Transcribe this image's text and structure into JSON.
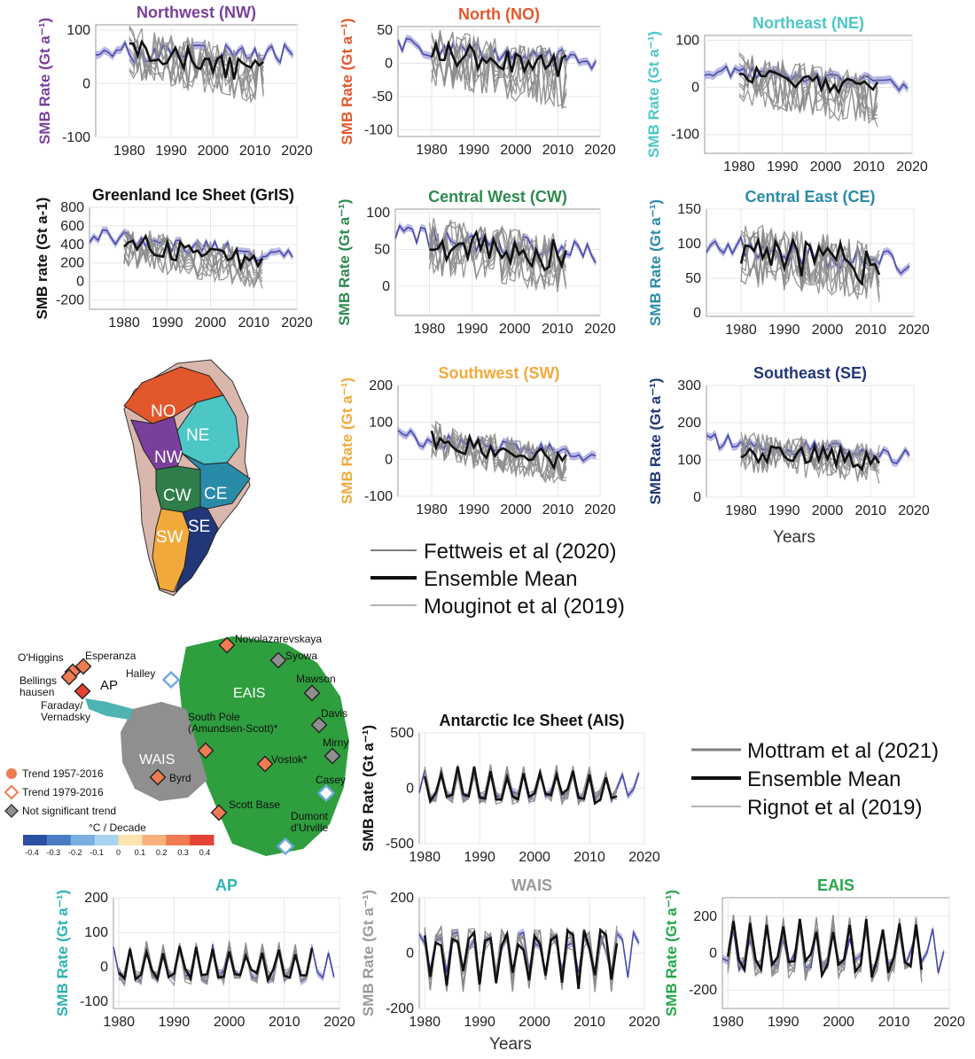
{
  "colors": {
    "NW": "#7a3f9d",
    "NO": "#e2572c",
    "NE": "#4dc6c6",
    "GrIS": "#111111",
    "CW": "#2e8a4e",
    "CE": "#2a8ba9",
    "SW": "#f2a93b",
    "SE": "#223777",
    "AIS": "#111111",
    "AP": "#2bb3b0",
    "WAIS": "#9a9a9a",
    "EAIS": "#26a64a",
    "ensemble": "#111111",
    "member": "#8c8c8c",
    "reference": "#4a4aa8",
    "reference_band": "#9d9ddd",
    "map_green": "#2e9e3e",
    "map_grey": "#8f8f8f"
  },
  "legend_greenland": [
    {
      "label": "Fettweis et al (2020)",
      "style": "member"
    },
    {
      "label": "Ensemble Mean",
      "style": "ensemble"
    },
    {
      "label": "Mouginot et al (2019)",
      "style": "thin"
    }
  ],
  "legend_antarctica": [
    {
      "label": "Mottram et al (2021)",
      "style": "member"
    },
    {
      "label": "Ensemble Mean",
      "style": "ensemble"
    },
    {
      "label": "Rignot et al (2019)",
      "style": "thin"
    }
  ],
  "x_axis_label_greenland": "Years",
  "x_axis_label_antarctica": "Years",
  "greenland_map": {
    "regions": [
      "NO",
      "NE",
      "NW",
      "CW",
      "CE",
      "SW",
      "SE"
    ]
  },
  "antarctica_map": {
    "region_labels": [
      "AP",
      "WAIS",
      "EAIS"
    ],
    "stations": [
      {
        "name": "O'Higgins",
        "trend": "1957"
      },
      {
        "name": "Esperanza",
        "trend": "1957"
      },
      {
        "name": "Bellings hausen",
        "trend": "1957"
      },
      {
        "name": "Faraday/ Vernadsky",
        "trend": "1957"
      },
      {
        "name": "Halley",
        "trend": "1979"
      },
      {
        "name": "Novolazarevskaya",
        "trend": "1957"
      },
      {
        "name": "Syowa",
        "trend": "ns"
      },
      {
        "name": "Mawson",
        "trend": "ns"
      },
      {
        "name": "Davis",
        "trend": "ns"
      },
      {
        "name": "Mirny",
        "trend": "ns"
      },
      {
        "name": "South Pole (Amundsen-Scott)*",
        "trend": "1957"
      },
      {
        "name": "Vostok*",
        "trend": "1957"
      },
      {
        "name": "Byrd",
        "trend": "1957"
      },
      {
        "name": "Casey",
        "trend": "1979"
      },
      {
        "name": "Scott Base",
        "trend": "1957"
      },
      {
        "name": "Dumont d'Urville",
        "trend": "1979"
      }
    ],
    "legend": [
      "Trend 1957-2016",
      "Trend 1979-2016",
      "Not significant trend"
    ],
    "colorbar_title": "°C / Decade",
    "colorbar_ticks": [
      "-0.4",
      "-0.3",
      "-0.2",
      "-0.1",
      "0",
      "0.1",
      "0.2",
      "0.3",
      "0.4"
    ],
    "colorbar_colors": [
      "#2b4fa2",
      "#4a7cc4",
      "#78aee0",
      "#a9d4ef",
      "#fde3b0",
      "#f7b07c",
      "#ef7b53",
      "#e34436"
    ]
  },
  "chart_data": [
    {
      "id": "NW",
      "type": "line",
      "title": "Northwest (NW)",
      "ylabel": "SMB Rate (Gt a⁻¹)",
      "xlim": [
        1972,
        2020
      ],
      "ylim": [
        -100,
        110
      ],
      "yticks": [
        -100,
        0,
        100
      ],
      "xticks": [
        1980,
        1990,
        2000,
        2010,
        2020
      ],
      "series": [
        {
          "role": "reference",
          "x": [
            1972,
            2019
          ],
          "values": [
            60,
            55
          ],
          "amp": 18
        },
        {
          "role": "ensemble",
          "x": [
            1980,
            2012
          ],
          "values": [
            65,
            20
          ],
          "amp": 22
        },
        {
          "role": "members",
          "x": [
            1980,
            2012
          ],
          "values": [
            60,
            10
          ],
          "amp": 50,
          "n": 8
        }
      ]
    },
    {
      "id": "NO",
      "type": "line",
      "title": "North (NO)",
      "ylabel": "SMB Rate (Gt a⁻¹)",
      "xlim": [
        1972,
        2020
      ],
      "ylim": [
        -110,
        55
      ],
      "yticks": [
        -100,
        -50,
        0,
        50
      ],
      "xticks": [
        1980,
        1990,
        2000,
        2010,
        2020
      ],
      "series": [
        {
          "role": "reference",
          "x": [
            1972,
            2019
          ],
          "values": [
            25,
            5
          ],
          "amp": 14
        },
        {
          "role": "ensemble",
          "x": [
            1980,
            2012
          ],
          "values": [
            15,
            -5
          ],
          "amp": 18
        },
        {
          "role": "members",
          "x": [
            1980,
            2012
          ],
          "values": [
            10,
            -25
          ],
          "amp": 45,
          "n": 8
        }
      ]
    },
    {
      "id": "NE",
      "type": "line",
      "title": "Northeast (NE)",
      "ylabel": "SMB Rate (Gt a⁻¹)",
      "xlim": [
        1972,
        2020
      ],
      "ylim": [
        -140,
        110
      ],
      "yticks": [
        -100,
        0,
        100
      ],
      "xticks": [
        1980,
        1990,
        2000,
        2010,
        2020
      ],
      "series": [
        {
          "role": "reference",
          "x": [
            1972,
            2019
          ],
          "values": [
            35,
            5
          ],
          "amp": 14
        },
        {
          "role": "ensemble",
          "x": [
            1980,
            2012
          ],
          "values": [
            30,
            -5
          ],
          "amp": 18
        },
        {
          "role": "members",
          "x": [
            1980,
            2012
          ],
          "values": [
            20,
            -30
          ],
          "amp": 55,
          "n": 8
        }
      ]
    },
    {
      "id": "GrIS",
      "type": "line",
      "title": "Greenland Ice Sheet (GrIS)",
      "ylabel": "SMB rate (Gt a-1)",
      "xlim": [
        1972,
        2020
      ],
      "ylim": [
        -300,
        800
      ],
      "yticks": [
        -200,
        0,
        200,
        400,
        600,
        800
      ],
      "xticks": [
        1980,
        1990,
        2000,
        2010,
        2020
      ],
      "series": [
        {
          "role": "reference",
          "x": [
            1972,
            2019
          ],
          "values": [
            500,
            250
          ],
          "amp": 90
        },
        {
          "role": "ensemble",
          "x": [
            1980,
            2012
          ],
          "values": [
            420,
            200
          ],
          "amp": 110
        },
        {
          "role": "members",
          "x": [
            1980,
            2012
          ],
          "values": [
            380,
            120
          ],
          "amp": 220,
          "n": 8
        }
      ]
    },
    {
      "id": "CW",
      "type": "line",
      "title": "Central West (CW)",
      "ylabel": "SMB Rate (Gt a⁻¹)",
      "xlim": [
        1972,
        2020
      ],
      "ylim": [
        -40,
        105
      ],
      "yticks": [
        0,
        50,
        100
      ],
      "xticks": [
        1980,
        1990,
        2000,
        2010,
        2020
      ],
      "series": [
        {
          "role": "reference",
          "x": [
            1972,
            2019
          ],
          "values": [
            70,
            45
          ],
          "amp": 14
        },
        {
          "role": "ensemble",
          "x": [
            1980,
            2012
          ],
          "values": [
            60,
            40
          ],
          "amp": 22
        },
        {
          "role": "members",
          "x": [
            1980,
            2012
          ],
          "values": [
            55,
            30
          ],
          "amp": 40,
          "n": 8
        }
      ]
    },
    {
      "id": "CE",
      "type": "line",
      "title": "Central East (CE)",
      "ylabel": "SMB Rate (Gt a⁻¹)",
      "xlim": [
        1972,
        2020
      ],
      "ylim": [
        -5,
        150
      ],
      "yticks": [
        0,
        50,
        100,
        150
      ],
      "xticks": [
        1980,
        1990,
        2000,
        2010,
        2020
      ],
      "series": [
        {
          "role": "reference",
          "x": [
            1972,
            2019
          ],
          "values": [
            100,
            70
          ],
          "amp": 18
        },
        {
          "role": "ensemble",
          "x": [
            1980,
            2012
          ],
          "values": [
            85,
            65
          ],
          "amp": 30
        },
        {
          "role": "members",
          "x": [
            1980,
            2012
          ],
          "values": [
            85,
            60
          ],
          "amp": 45,
          "n": 8
        }
      ]
    },
    {
      "id": "SW",
      "type": "line",
      "title": "Southwest (SW)",
      "ylabel": "SMB Rate (Gt a⁻¹)",
      "xlim": [
        1972,
        2020
      ],
      "ylim": [
        -100,
        200
      ],
      "yticks": [
        -100,
        0,
        100,
        200
      ],
      "xticks": [
        1980,
        1990,
        2000,
        2010,
        2020
      ],
      "series": [
        {
          "role": "reference",
          "x": [
            1972,
            2019
          ],
          "values": [
            60,
            10
          ],
          "amp": 22
        },
        {
          "role": "ensemble",
          "x": [
            1980,
            2012
          ],
          "values": [
            60,
            -10
          ],
          "amp": 30
        },
        {
          "role": "members",
          "x": [
            1980,
            2012
          ],
          "values": [
            50,
            -20
          ],
          "amp": 55,
          "n": 8
        }
      ]
    },
    {
      "id": "SE",
      "type": "line",
      "title": "Southeast (SE)",
      "ylabel": "SMB Rate (Gt a⁻¹)",
      "xlim": [
        1972,
        2020
      ],
      "ylim": [
        0,
        300
      ],
      "yticks": [
        0,
        100,
        200,
        300
      ],
      "xticks": [
        1980,
        1990,
        2000,
        2010,
        2020
      ],
      "series": [
        {
          "role": "reference",
          "x": [
            1972,
            2019
          ],
          "values": [
            150,
            110
          ],
          "amp": 22
        },
        {
          "role": "ensemble",
          "x": [
            1980,
            2012
          ],
          "values": [
            120,
            100
          ],
          "amp": 28
        },
        {
          "role": "members",
          "x": [
            1980,
            2012
          ],
          "values": [
            120,
            90
          ],
          "amp": 55,
          "n": 8
        }
      ]
    },
    {
      "id": "AIS",
      "type": "line",
      "title": "Antarctic Ice Sheet (AIS)",
      "ylabel": "SMB Rate (Gt a⁻¹)",
      "xlim": [
        1979,
        2020
      ],
      "ylim": [
        -500,
        500
      ],
      "yticks": [
        -500,
        0,
        500
      ],
      "xticks": [
        1980,
        1990,
        2000,
        2010,
        2020
      ],
      "series": [
        {
          "role": "reference",
          "x": [
            1979,
            2019
          ],
          "values": [
            0,
            0
          ],
          "amp": 160
        },
        {
          "role": "ensemble",
          "x": [
            1980,
            2015
          ],
          "values": [
            0,
            0
          ],
          "amp": 180
        },
        {
          "role": "members",
          "x": [
            1980,
            2015
          ],
          "values": [
            0,
            0
          ],
          "amp": 200,
          "n": 6
        }
      ]
    },
    {
      "id": "AP",
      "type": "line",
      "title": "AP",
      "ylabel": "SMB Rate (Gt a⁻¹)",
      "xlim": [
        1979,
        2020
      ],
      "ylim": [
        -120,
        200
      ],
      "yticks": [
        -100,
        0,
        100,
        200
      ],
      "xticks": [
        1980,
        1990,
        2000,
        2010,
        2020
      ],
      "series": [
        {
          "role": "reference",
          "x": [
            1979,
            2019
          ],
          "values": [
            0,
            0
          ],
          "amp": 60
        },
        {
          "role": "ensemble",
          "x": [
            1980,
            2015
          ],
          "values": [
            0,
            0
          ],
          "amp": 60
        },
        {
          "role": "members",
          "x": [
            1980,
            2015
          ],
          "values": [
            0,
            0
          ],
          "amp": 70,
          "n": 6
        }
      ]
    },
    {
      "id": "WAIS",
      "type": "line",
      "title": "WAIS",
      "ylabel": "SMB Rate (Gt a⁻¹)",
      "xlim": [
        1979,
        2020
      ],
      "ylim": [
        -200,
        200
      ],
      "yticks": [
        -200,
        0,
        200
      ],
      "xticks": [
        1980,
        1990,
        2000,
        2010,
        2020
      ],
      "series": [
        {
          "role": "reference",
          "x": [
            1979,
            2019
          ],
          "values": [
            0,
            0
          ],
          "amp": 110
        },
        {
          "role": "ensemble",
          "x": [
            1980,
            2015
          ],
          "values": [
            0,
            0
          ],
          "amp": 120
        },
        {
          "role": "members",
          "x": [
            1980,
            2015
          ],
          "values": [
            0,
            0
          ],
          "amp": 130,
          "n": 6
        }
      ]
    },
    {
      "id": "EAIS",
      "type": "line",
      "title": "EAIS",
      "ylabel": "SMB Rate (Gt a⁻¹)",
      "xlim": [
        1979,
        2020
      ],
      "ylim": [
        -300,
        300
      ],
      "yticks": [
        -200,
        0,
        200
      ],
      "xticks": [
        1980,
        1990,
        2000,
        2010,
        2020
      ],
      "series": [
        {
          "role": "reference",
          "x": [
            1979,
            2019
          ],
          "values": [
            0,
            0
          ],
          "amp": 140
        },
        {
          "role": "ensemble",
          "x": [
            1980,
            2015
          ],
          "values": [
            0,
            0
          ],
          "amp": 170
        },
        {
          "role": "members",
          "x": [
            1980,
            2015
          ],
          "values": [
            0,
            0
          ],
          "amp": 190,
          "n": 6
        }
      ]
    }
  ]
}
